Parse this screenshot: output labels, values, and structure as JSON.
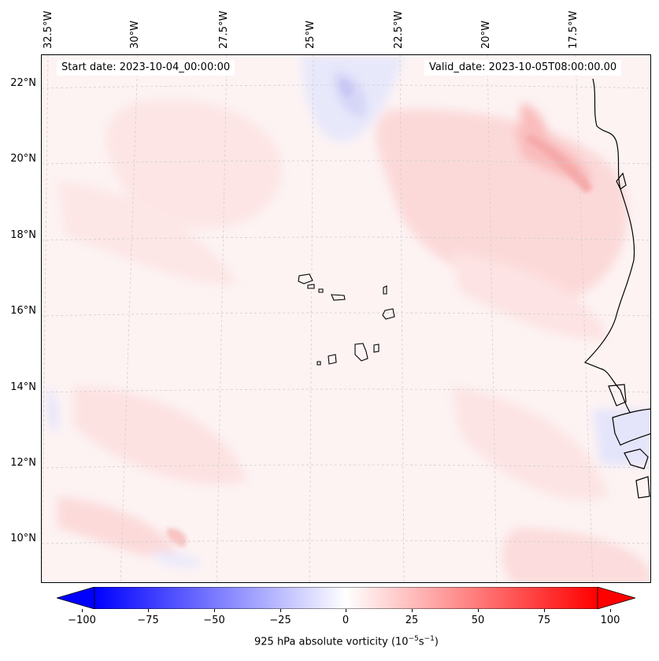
{
  "map": {
    "start_date": "Start date: 2023-10-04_00:00:00",
    "valid_date": "Valid_date: 2023-10-05T08:00:00.00",
    "lon_labels": [
      "32.5°W",
      "30°W",
      "27.5°W",
      "25°W",
      "22.5°W",
      "20°W",
      "17.5°W"
    ],
    "lat_labels": [
      "22°N",
      "20°N",
      "18°N",
      "16°N",
      "14°N",
      "12°N",
      "10°N"
    ],
    "land_outline_color": "#000000",
    "gridline_color": "#cfcfcf"
  },
  "colorbar": {
    "ticks": [
      "−100",
      "−75",
      "−50",
      "−25",
      "0",
      "25",
      "50",
      "75",
      "100"
    ],
    "title_prefix": "925 hPa absolute vorticity (10",
    "title_exp1": "−5",
    "title_mid": "s",
    "title_exp2": "−1",
    "title_suffix": ")",
    "low_color": "#0000ff",
    "mid_color": "#ffffff",
    "high_color": "#ff0000",
    "range": [
      -100,
      100
    ]
  }
}
